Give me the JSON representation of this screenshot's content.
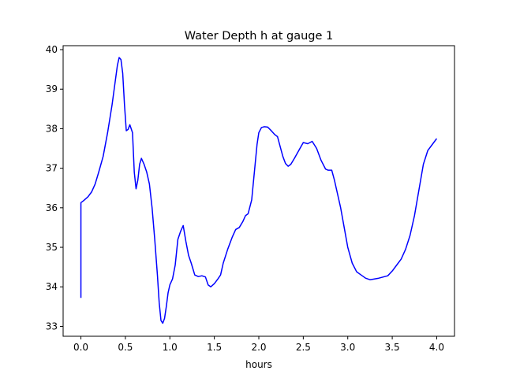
{
  "chart_data": {
    "type": "line",
    "title": "Water Depth h at gauge 1",
    "xlabel": "hours",
    "ylabel": "",
    "xlim": [
      -0.2,
      4.2
    ],
    "ylim": [
      32.75,
      40.1
    ],
    "xticks": [
      0.0,
      0.5,
      1.0,
      1.5,
      2.0,
      2.5,
      3.0,
      3.5,
      4.0
    ],
    "xtick_labels": [
      "0.0",
      "0.5",
      "1.0",
      "1.5",
      "2.0",
      "2.5",
      "3.0",
      "3.5",
      "4.0"
    ],
    "yticks": [
      33,
      34,
      35,
      36,
      37,
      38,
      39,
      40
    ],
    "ytick_labels": [
      "33",
      "34",
      "35",
      "36",
      "37",
      "38",
      "39",
      "40"
    ],
    "grid": false,
    "legend": "none",
    "series": [
      {
        "color": "#0000ff",
        "x": [
          0.0,
          0.0,
          0.03,
          0.08,
          0.12,
          0.16,
          0.2,
          0.25,
          0.3,
          0.35,
          0.38,
          0.41,
          0.43,
          0.45,
          0.47,
          0.49,
          0.51,
          0.53,
          0.55,
          0.58,
          0.6,
          0.62,
          0.64,
          0.66,
          0.68,
          0.71,
          0.74,
          0.77,
          0.8,
          0.83,
          0.86,
          0.88,
          0.9,
          0.92,
          0.94,
          0.96,
          0.98,
          1.0,
          1.03,
          1.06,
          1.09,
          1.12,
          1.15,
          1.18,
          1.21,
          1.24,
          1.26,
          1.28,
          1.32,
          1.36,
          1.4,
          1.43,
          1.46,
          1.5,
          1.54,
          1.57,
          1.6,
          1.65,
          1.7,
          1.74,
          1.78,
          1.82,
          1.85,
          1.88,
          1.92,
          1.95,
          1.98,
          2.0,
          2.03,
          2.06,
          2.1,
          2.14,
          2.18,
          2.21,
          2.24,
          2.27,
          2.3,
          2.33,
          2.36,
          2.4,
          2.45,
          2.5,
          2.55,
          2.6,
          2.65,
          2.7,
          2.75,
          2.78,
          2.82,
          2.85,
          2.88,
          2.92,
          2.96,
          3.0,
          3.05,
          3.1,
          3.15,
          3.2,
          3.25,
          3.3,
          3.35,
          3.4,
          3.45,
          3.5,
          3.55,
          3.6,
          3.65,
          3.7,
          3.75,
          3.8,
          3.85,
          3.9,
          3.95,
          4.0
        ],
        "y": [
          33.72,
          36.13,
          36.18,
          36.28,
          36.4,
          36.6,
          36.9,
          37.3,
          37.9,
          38.6,
          39.1,
          39.6,
          39.8,
          39.75,
          39.4,
          38.6,
          37.95,
          37.98,
          38.1,
          37.9,
          36.9,
          36.48,
          36.7,
          37.1,
          37.25,
          37.1,
          36.9,
          36.6,
          36.0,
          35.2,
          34.3,
          33.6,
          33.15,
          33.08,
          33.2,
          33.5,
          33.85,
          34.05,
          34.2,
          34.55,
          35.2,
          35.4,
          35.55,
          35.15,
          34.8,
          34.6,
          34.45,
          34.3,
          34.26,
          34.28,
          34.25,
          34.05,
          34.0,
          34.08,
          34.2,
          34.3,
          34.6,
          34.95,
          35.25,
          35.45,
          35.5,
          35.65,
          35.8,
          35.85,
          36.2,
          36.9,
          37.6,
          37.9,
          38.03,
          38.05,
          38.04,
          37.95,
          37.85,
          37.8,
          37.55,
          37.3,
          37.12,
          37.05,
          37.1,
          37.25,
          37.45,
          37.65,
          37.62,
          37.68,
          37.5,
          37.2,
          36.98,
          36.95,
          36.95,
          36.7,
          36.4,
          36.0,
          35.5,
          35.0,
          34.6,
          34.38,
          34.3,
          34.22,
          34.18,
          34.2,
          34.22,
          34.25,
          34.28,
          34.4,
          34.55,
          34.7,
          34.95,
          35.3,
          35.8,
          36.45,
          37.1,
          37.45,
          37.6,
          37.75
        ]
      }
    ]
  }
}
